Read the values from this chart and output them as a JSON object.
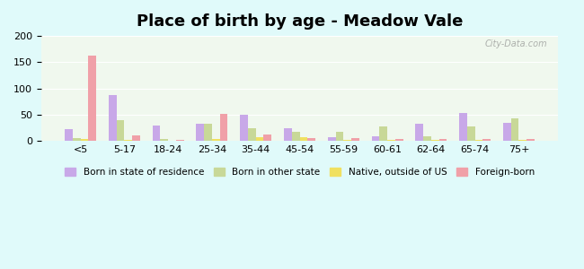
{
  "title": "Place of birth by age - Meadow Vale",
  "categories": [
    "<5",
    "5-17",
    "18-24",
    "25-34",
    "35-44",
    "45-54",
    "55-59",
    "60-61",
    "62-64",
    "65-74",
    "75+"
  ],
  "series": {
    "Born in state of residence": [
      22,
      88,
      30,
      33,
      50,
      25,
      8,
      9,
      33,
      53,
      34
    ],
    "Born in other state": [
      6,
      40,
      3,
      32,
      24,
      17,
      18,
      28,
      9,
      28,
      43
    ],
    "Native, outside of US": [
      3,
      2,
      1,
      3,
      7,
      7,
      2,
      2,
      2,
      2,
      2
    ],
    "Foreign-born": [
      163,
      11,
      2,
      52,
      13,
      5,
      5,
      4,
      3,
      3,
      3
    ]
  },
  "colors": {
    "Born in state of residence": "#c8a8e8",
    "Born in other state": "#c8d898",
    "Native, outside of US": "#f0e060",
    "Foreign-born": "#f0a0a8"
  },
  "ylim": [
    0,
    200
  ],
  "yticks": [
    0,
    50,
    100,
    150,
    200
  ],
  "background_color": "#e0fafa",
  "plot_bg_top": "#f8f8ff",
  "plot_bg_bottom": "#e8f5e0",
  "watermark": "City-Data.com"
}
